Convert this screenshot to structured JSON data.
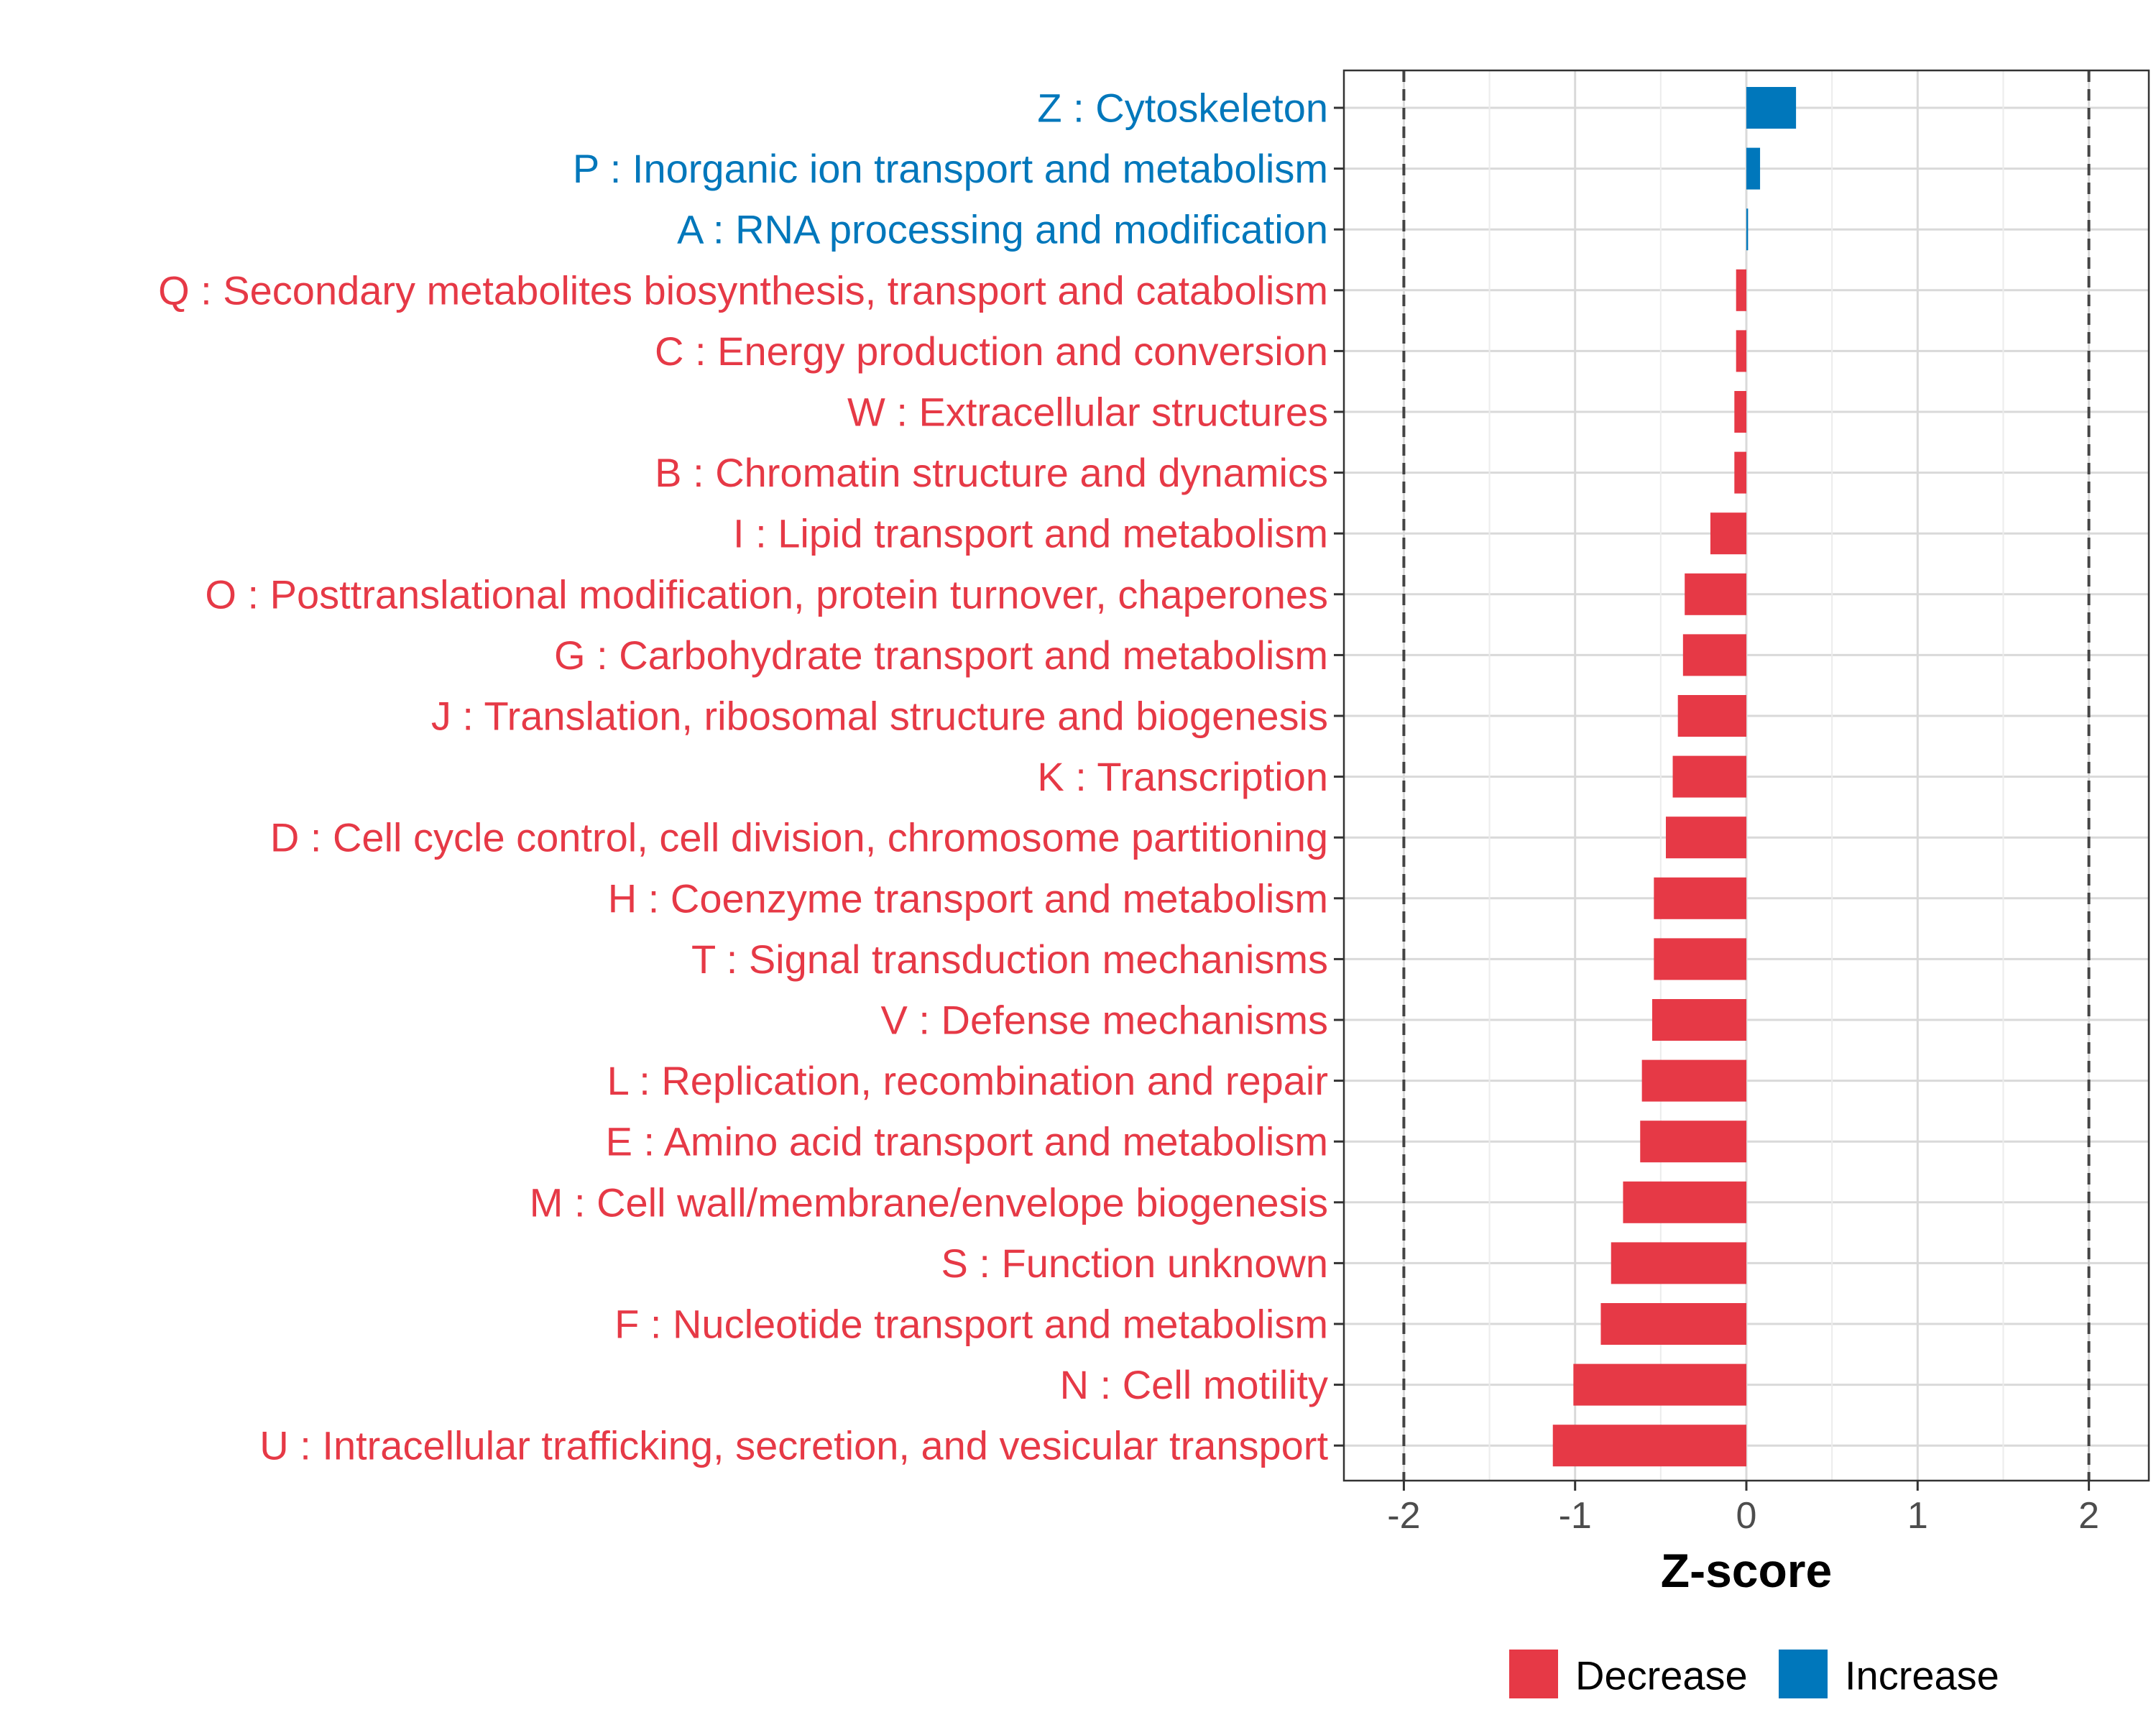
{
  "chart_data": {
    "type": "bar",
    "orientation": "horizontal",
    "xlabel": "Z-score",
    "xlim": [
      -2.35,
      2.35
    ],
    "xticks": [
      -2,
      -1,
      0,
      1,
      2
    ],
    "xtick_labels": [
      "-2",
      "-1",
      "0",
      "1",
      "2"
    ],
    "reference_lines": [
      -2,
      2
    ],
    "grid": true,
    "legend": {
      "placement": "bottom",
      "entries": [
        {
          "name": "Decrease",
          "color": "#E63946"
        },
        {
          "name": "Increase",
          "color": "#0077BB"
        }
      ]
    },
    "categories": [
      {
        "label": "Z : Cytoskeleton",
        "value": 0.29,
        "direction": "Increase"
      },
      {
        "label": "P : Inorganic ion transport and metabolism",
        "value": 0.08,
        "direction": "Increase"
      },
      {
        "label": "A : RNA processing and modification",
        "value": 0.01,
        "direction": "Increase"
      },
      {
        "label": "Q : Secondary metabolites biosynthesis, transport and catabolism",
        "value": -0.06,
        "direction": "Decrease"
      },
      {
        "label": "C : Energy production and conversion",
        "value": -0.06,
        "direction": "Decrease"
      },
      {
        "label": "W : Extracellular structures",
        "value": -0.07,
        "direction": "Decrease"
      },
      {
        "label": "B : Chromatin structure and dynamics",
        "value": -0.07,
        "direction": "Decrease"
      },
      {
        "label": "I : Lipid transport and metabolism",
        "value": -0.21,
        "direction": "Decrease"
      },
      {
        "label": "O : Posttranslational modification, protein turnover, chaperones",
        "value": -0.36,
        "direction": "Decrease"
      },
      {
        "label": "G : Carbohydrate transport and metabolism",
        "value": -0.37,
        "direction": "Decrease"
      },
      {
        "label": "J : Translation, ribosomal structure and biogenesis",
        "value": -0.4,
        "direction": "Decrease"
      },
      {
        "label": "K : Transcription",
        "value": -0.43,
        "direction": "Decrease"
      },
      {
        "label": "D : Cell cycle control, cell division, chromosome partitioning",
        "value": -0.47,
        "direction": "Decrease"
      },
      {
        "label": "H : Coenzyme transport and metabolism",
        "value": -0.54,
        "direction": "Decrease"
      },
      {
        "label": "T : Signal transduction mechanisms",
        "value": -0.54,
        "direction": "Decrease"
      },
      {
        "label": "V : Defense mechanisms",
        "value": -0.55,
        "direction": "Decrease"
      },
      {
        "label": "L : Replication, recombination and repair",
        "value": -0.61,
        "direction": "Decrease"
      },
      {
        "label": "E : Amino acid transport and metabolism",
        "value": -0.62,
        "direction": "Decrease"
      },
      {
        "label": "M : Cell wall/membrane/envelope biogenesis",
        "value": -0.72,
        "direction": "Decrease"
      },
      {
        "label": "S : Function unknown",
        "value": -0.79,
        "direction": "Decrease"
      },
      {
        "label": "F : Nucleotide transport and metabolism",
        "value": -0.85,
        "direction": "Decrease"
      },
      {
        "label": "N : Cell motility",
        "value": -1.01,
        "direction": "Decrease"
      },
      {
        "label": "U : Intracellular trafficking, secretion, and vesicular transport",
        "value": -1.13,
        "direction": "Decrease"
      }
    ]
  }
}
